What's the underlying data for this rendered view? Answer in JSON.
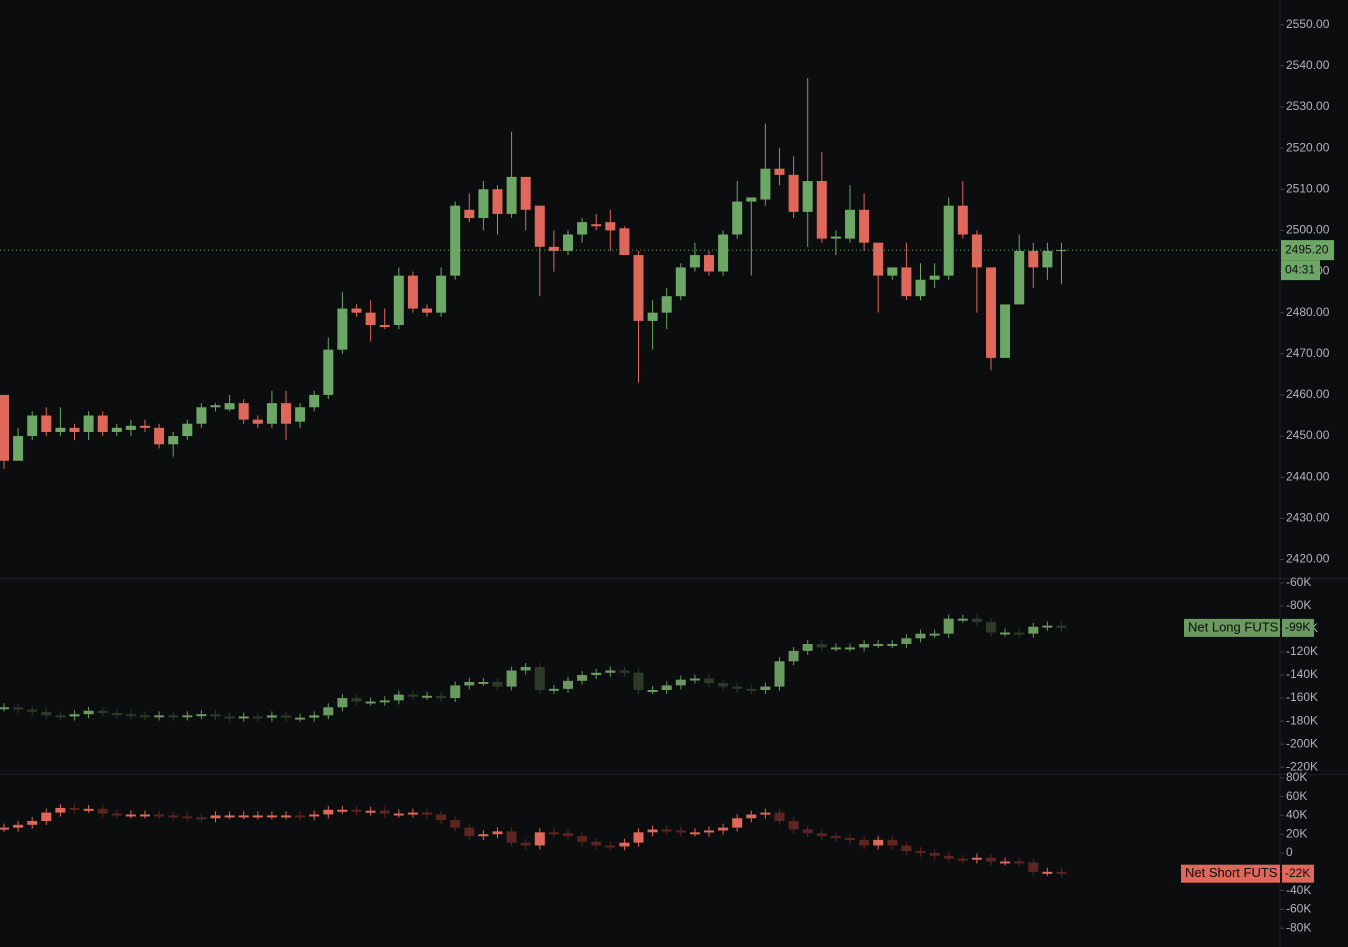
{
  "chart_data": [
    {
      "type": "candlestick",
      "up_color": "#6ca765",
      "down_color": "#e0685a",
      "ylim": [
        2415.5,
        2556
      ],
      "yticks": [
        {
          "value": 2420,
          "label": "2420.00"
        },
        {
          "value": 2430,
          "label": "2430.00"
        },
        {
          "value": 2440,
          "label": "2440.00"
        },
        {
          "value": 2450,
          "label": "2450.00"
        },
        {
          "value": 2460,
          "label": "2460.00"
        },
        {
          "value": 2470,
          "label": "2470.00"
        },
        {
          "value": 2480,
          "label": "2480.00"
        },
        {
          "value": 2490,
          "label": "2490.00"
        },
        {
          "value": 2500,
          "label": "2500.00"
        },
        {
          "value": 2510,
          "label": "2510.00"
        },
        {
          "value": 2520,
          "label": "2520.00"
        },
        {
          "value": 2530,
          "label": "2530.00"
        },
        {
          "value": 2540,
          "label": "2540.00"
        },
        {
          "value": 2550,
          "label": "2550.00"
        }
      ],
      "open": [
        2460,
        2444,
        2450,
        2455,
        2451,
        2452,
        2451,
        2455,
        2451,
        2451.5,
        2452.5,
        2452,
        2448,
        2450,
        2453,
        2457,
        2456.5,
        2458,
        2454,
        2453,
        2458,
        2453.5,
        2457,
        2460,
        2471,
        2481,
        2480,
        2477,
        2477,
        2489,
        2481,
        2480,
        2489,
        2505,
        2503,
        2510,
        2504,
        2513,
        2506,
        2496,
        2495,
        2499,
        2501.5,
        2502,
        2500.5,
        2494,
        2478,
        2480,
        2484,
        2491,
        2494,
        2490,
        2499,
        2507,
        2507.5,
        2515,
        2513.5,
        2504.5,
        2512,
        2498,
        2498,
        2505,
        2497,
        2489,
        2491,
        2484,
        2488,
        2489,
        2506,
        2499,
        2491,
        2469,
        2482,
        2495,
        2491,
        2495
      ],
      "high": [
        2460,
        2452,
        2456,
        2457,
        2457,
        2453,
        2456,
        2456,
        2453,
        2454,
        2454,
        2453,
        2451,
        2454,
        2458,
        2458,
        2460,
        2459,
        2455,
        2461,
        2461,
        2458,
        2461,
        2474,
        2485,
        2482,
        2483,
        2481,
        2491,
        2490,
        2482,
        2491,
        2507,
        2509,
        2512,
        2511,
        2524,
        2513,
        2506,
        2500,
        2500,
        2503,
        2504,
        2505,
        2501,
        2495,
        2483,
        2486,
        2492,
        2497,
        2495,
        2500,
        2512,
        2508,
        2526,
        2520,
        2518,
        2537,
        2519,
        2500,
        2511,
        2509,
        2497,
        2491,
        2497,
        2492,
        2492,
        2508,
        2512,
        2500,
        2491,
        2482,
        2499,
        2497,
        2497,
        2497
      ],
      "low": [
        2442,
        2444,
        2449,
        2450,
        2450,
        2449,
        2449,
        2450,
        2450,
        2450,
        2451,
        2447,
        2445,
        2449,
        2452,
        2456,
        2456,
        2453,
        2452,
        2452,
        2449,
        2452,
        2456,
        2459,
        2470,
        2479,
        2473,
        2476,
        2476,
        2480,
        2479,
        2479,
        2488,
        2502,
        2500,
        2499,
        2503,
        2500,
        2484,
        2490,
        2494,
        2497,
        2500,
        2495,
        2494,
        2463,
        2471,
        2476,
        2483,
        2490,
        2489,
        2489,
        2498,
        2489,
        2506,
        2511,
        2503,
        2496,
        2497,
        2494,
        2497,
        2495,
        2480,
        2488,
        2483,
        2483,
        2486,
        2488,
        2498,
        2480,
        2466,
        2469,
        2482,
        2486,
        2488,
        2487
      ],
      "close": [
        2444,
        2450,
        2455,
        2451,
        2452,
        2451,
        2455,
        2451,
        2452,
        2452.5,
        2452,
        2448,
        2450,
        2453,
        2457,
        2457.5,
        2458,
        2454,
        2453,
        2458,
        2453,
        2457,
        2460,
        2471,
        2481,
        2480,
        2477,
        2476.5,
        2489,
        2481,
        2480,
        2489,
        2506,
        2503,
        2510,
        2504,
        2513,
        2505,
        2496,
        2495,
        2499,
        2502,
        2501,
        2500,
        2494,
        2478,
        2480,
        2484,
        2491,
        2494,
        2490,
        2499,
        2507,
        2508,
        2515,
        2513.5,
        2504.5,
        2512,
        2498,
        2498.5,
        2505,
        2497,
        2489,
        2491,
        2484,
        2488,
        2489,
        2506,
        2499,
        2491,
        2469,
        2482,
        2495,
        2491,
        2495,
        2495.2
      ],
      "last_price_label": "2495.20",
      "countdown": "04:31"
    },
    {
      "type": "change",
      "name": "Net Long FUTS",
      "last_label": "-99K",
      "up_color": "#6a9a5f",
      "down_color": "#2c3b27",
      "ylim": [
        -226000,
        -56500
      ],
      "yticks": [
        {
          "value": -60000,
          "label": "-60K"
        },
        {
          "value": -80000,
          "label": "-80K"
        },
        {
          "value": -100000,
          "label": "-100K"
        },
        {
          "value": -120000,
          "label": "-120K"
        },
        {
          "value": -140000,
          "label": "-140K"
        },
        {
          "value": -160000,
          "label": "-160K"
        },
        {
          "value": -180000,
          "label": "-180K"
        },
        {
          "value": -200000,
          "label": "-200K"
        },
        {
          "value": -220000,
          "label": "-220K"
        }
      ],
      "values": [
        -168000,
        -170000,
        -172000,
        -175000,
        -176000,
        -174000,
        -171000,
        -173000,
        -174000,
        -175000,
        -176000,
        -175000,
        -176000,
        -175000,
        -174000,
        -176000,
        -177000,
        -176000,
        -177000,
        -175000,
        -177000,
        -177000,
        -175000,
        -168000,
        -160000,
        -163000,
        -163000,
        -162000,
        -157000,
        -158000,
        -158000,
        -160000,
        -149000,
        -146000,
        -146000,
        -150000,
        -136000,
        -133000,
        -153000,
        -152000,
        -145000,
        -140000,
        -138000,
        -136000,
        -138000,
        -153000,
        -153000,
        -149000,
        -144000,
        -143000,
        -147000,
        -150000,
        -152000,
        -153000,
        -150000,
        -128000,
        -119000,
        -113000,
        -116000,
        -116000,
        -116000,
        -113000,
        -113000,
        -113000,
        -108000,
        -104000,
        -104000,
        -91000,
        -91000,
        -94000,
        -103000,
        -103000,
        -104000,
        -98000,
        -97000,
        -99000
      ]
    },
    {
      "type": "change",
      "name": "Net Short FUTS",
      "last_label": "-22K",
      "up_color": "#e0685a",
      "down_color": "#5c2520",
      "ylim": [
        -100000,
        83000
      ],
      "yticks": [
        {
          "value": 80000,
          "label": "80K"
        },
        {
          "value": 60000,
          "label": "60K"
        },
        {
          "value": 40000,
          "label": "40K"
        },
        {
          "value": 20000,
          "label": "20K"
        },
        0,
        {
          "value": -20000,
          "label": "-20K"
        },
        {
          "value": -40000,
          "label": "-40K"
        },
        {
          "value": -60000,
          "label": "-60K"
        },
        {
          "value": -80000,
          "label": "-80K"
        }
      ],
      "values": [
        27000,
        30000,
        34000,
        43000,
        48000,
        47000,
        47000,
        42000,
        41000,
        41000,
        41000,
        40000,
        39000,
        38000,
        37000,
        40000,
        40000,
        40000,
        40000,
        40000,
        40000,
        39000,
        41000,
        46000,
        46000,
        44000,
        45000,
        42000,
        42000,
        43000,
        41000,
        35000,
        27000,
        18000,
        20000,
        23000,
        11000,
        8000,
        22000,
        21000,
        18000,
        12000,
        8000,
        7000,
        11000,
        22000,
        25000,
        24000,
        22000,
        22000,
        24000,
        27000,
        37000,
        41000,
        43000,
        34000,
        25000,
        21000,
        18000,
        16000,
        14000,
        8000,
        14000,
        8000,
        2000,
        0,
        -3000,
        -6000,
        -7000,
        -5000,
        -9000,
        -9000,
        -10000,
        -20000,
        -20000,
        -22000
      ]
    }
  ]
}
